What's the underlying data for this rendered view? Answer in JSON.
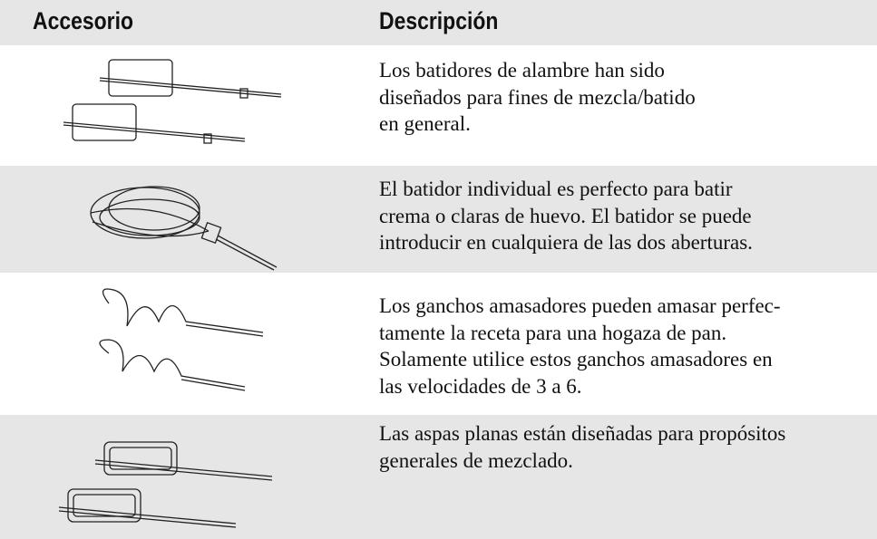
{
  "table": {
    "header": [
      "Accesorio",
      "Descripción"
    ],
    "rows": [
      {
        "description": [
          "Los batidores de alambre han sido",
          "diseñados para fines de mezcla/batido",
          "en general."
        ]
      },
      {
        "description": [
          "El batidor individual es perfecto para batir",
          "crema o claras de huevo. El batidor se puede",
          "introducir en cualquiera de las dos aberturas."
        ]
      },
      {
        "description": [
          "Los ganchos amasadores pueden amasar perfec-",
          "tamente la receta para una hogaza de pan.",
          "Solamente utilice estos ganchos amasadores en",
          "las velocidades de 3 a 6."
        ]
      },
      {
        "description": [
          "Las aspas planas están diseñadas para propósitos",
          "generales de mezclado."
        ]
      }
    ]
  }
}
